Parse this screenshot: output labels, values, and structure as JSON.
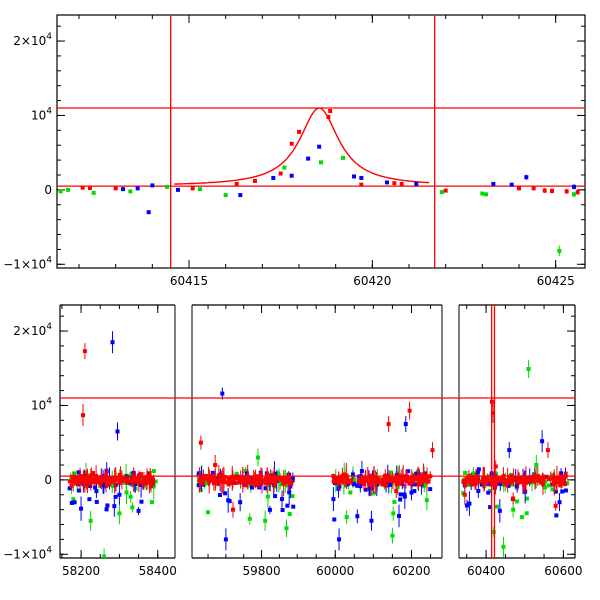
{
  "chart_data": [
    {
      "type": "scatter",
      "panel": "top",
      "xlim": [
        60411.4,
        60425.8
      ],
      "ylim": [
        -10500,
        23500
      ],
      "x_ticks": [
        60415,
        60420,
        60425
      ],
      "x_ticklabels": [
        "60415",
        "60420",
        "60425"
      ],
      "y_ticks": [
        -10000,
        0,
        10000,
        20000
      ],
      "y_ticklabels": [
        {
          "base": "−1×10",
          "exp": "4"
        },
        {
          "base": "0",
          "exp": ""
        },
        {
          "base": "10",
          "exp": "4"
        },
        {
          "base": "2×10",
          "exp": "4"
        }
      ],
      "hlines": [
        11000,
        500
      ],
      "vlines": [
        60414.5,
        60421.7
      ],
      "model_curve": {
        "baseline": 500,
        "peak": 11000,
        "x0": 60418.55,
        "width": 0.65
      },
      "series": [
        {
          "color": "#ff0000",
          "points": [
            [
              60412.1,
              300,
              250
            ],
            [
              60412.3,
              250,
              200
            ],
            [
              60413.0,
              200,
              200
            ],
            [
              60415.1,
              200,
              200
            ],
            [
              60416.3,
              800,
              250
            ],
            [
              60416.8,
              1200,
              250
            ],
            [
              60417.5,
              2200,
              250
            ],
            [
              60417.8,
              6200,
              300
            ],
            [
              60418.0,
              7800,
              300
            ],
            [
              60418.8,
              9800,
              300
            ],
            [
              60418.85,
              10600,
              300
            ],
            [
              60419.7,
              700,
              250
            ],
            [
              60420.6,
              900,
              250
            ],
            [
              60420.8,
              800,
              250
            ],
            [
              60422.0,
              -100,
              250
            ],
            [
              60424.0,
              200,
              300
            ],
            [
              60424.4,
              200,
              300
            ],
            [
              60424.7,
              -100,
              350
            ],
            [
              60424.9,
              -150,
              350
            ],
            [
              60425.3,
              -200,
              350
            ],
            [
              60425.6,
              -300,
              400
            ]
          ]
        },
        {
          "color": "#0000ff",
          "points": [
            [
              60413.2,
              100,
              200
            ],
            [
              60413.6,
              200,
              200
            ],
            [
              60413.9,
              -3000,
              250
            ],
            [
              60414.0,
              600,
              200
            ],
            [
              60414.7,
              0,
              200
            ],
            [
              60416.4,
              -700,
              250
            ],
            [
              60417.3,
              1600,
              250
            ],
            [
              60417.8,
              1900,
              250
            ],
            [
              60418.25,
              4200,
              300
            ],
            [
              60418.55,
              5800,
              300
            ],
            [
              60419.5,
              1800,
              250
            ],
            [
              60419.7,
              1600,
              250
            ],
            [
              60420.4,
              1000,
              250
            ],
            [
              60421.2,
              800,
              250
            ],
            [
              60423.3,
              800,
              300
            ],
            [
              60423.8,
              700,
              300
            ],
            [
              60424.2,
              1700,
              350
            ],
            [
              60425.5,
              400,
              350
            ]
          ]
        },
        {
          "color": "#00dd00",
          "points": [
            [
              60411.5,
              -200,
              250
            ],
            [
              60411.7,
              0,
              250
            ],
            [
              60412.4,
              -400,
              250
            ],
            [
              60413.4,
              -200,
              250
            ],
            [
              60414.4,
              400,
              250
            ],
            [
              60415.3,
              100,
              250
            ],
            [
              60416.0,
              -700,
              300
            ],
            [
              60417.6,
              3000,
              300
            ],
            [
              60418.6,
              3700,
              300
            ],
            [
              60419.2,
              4300,
              300
            ],
            [
              60421.9,
              -300,
              300
            ],
            [
              60423.0,
              -500,
              300
            ],
            [
              60423.1,
              -600,
              300
            ],
            [
              60425.1,
              -8200,
              700
            ],
            [
              60425.5,
              -600,
              350
            ]
          ]
        }
      ]
    },
    {
      "type": "scatter",
      "panel": "bottom",
      "ylim": [
        -10500,
        23500
      ],
      "x_segments": [
        {
          "xmin": 58145,
          "xmax": 58445,
          "ticks": [
            58200,
            58400
          ],
          "ticklabels": [
            "58200",
            "58400"
          ]
        },
        {
          "xmin": 59605,
          "xmax": 59905,
          "ticks": [
            59800
          ],
          "ticklabels": [
            "59800"
          ]
        },
        {
          "xmin": 59905,
          "xmax": 60280,
          "ticks": [
            60000,
            60200
          ],
          "ticklabels": [
            "60000",
            "60200"
          ]
        },
        {
          "xmin": 60330,
          "xmax": 60630,
          "ticks": [
            60400,
            60600
          ],
          "ticklabels": [
            "60400",
            "60600"
          ]
        }
      ],
      "y_ticks": [
        -10000,
        0,
        10000,
        20000
      ],
      "y_ticklabels": [
        {
          "base": "−1×10",
          "exp": "4"
        },
        {
          "base": "0",
          "exp": ""
        },
        {
          "base": "10",
          "exp": "4"
        },
        {
          "base": "2×10",
          "exp": "4"
        }
      ],
      "hlines": [
        11000,
        500
      ],
      "vlines": [
        60414.5,
        60421.7
      ],
      "dense_clusters": [
        {
          "segment": 0,
          "xmin": 58170,
          "xmax": 58395
        },
        {
          "segment": 1,
          "xmin": 59620,
          "xmax": 59890
        },
        {
          "segment": 2,
          "xmin": 59995,
          "xmax": 60250
        },
        {
          "segment": 3,
          "xmin": 60340,
          "xmax": 60610
        }
      ],
      "outliers": {
        "red": [
          [
            58210,
            17300
          ],
          [
            58205,
            8700
          ],
          [
            59630,
            5000
          ],
          [
            59670,
            2000
          ],
          [
            59720,
            -4000
          ],
          [
            60140,
            7500
          ],
          [
            60195,
            9300
          ],
          [
            60160,
            -1500
          ],
          [
            60255,
            4000
          ],
          [
            60415,
            10500
          ],
          [
            60418,
            9000
          ],
          [
            60425,
            1800
          ],
          [
            60470,
            -2500
          ],
          [
            60560,
            4000
          ],
          [
            60580,
            -3500
          ],
          [
            60345,
            -2000
          ]
        ],
        "blue": [
          [
            58282,
            18500
          ],
          [
            58295,
            6500
          ],
          [
            58300,
            -2000
          ],
          [
            58240,
            -1500
          ],
          [
            59690,
            11600
          ],
          [
            59700,
            -8000
          ],
          [
            59740,
            -3000
          ],
          [
            60010,
            -8000
          ],
          [
            60095,
            -5500
          ],
          [
            60185,
            7500
          ],
          [
            60460,
            4000
          ],
          [
            60545,
            5200
          ],
          [
            60590,
            -3000
          ],
          [
            60380,
            -1500
          ]
        ],
        "green": [
          [
            58225,
            -5500
          ],
          [
            58260,
            -10300
          ],
          [
            58300,
            -4500
          ],
          [
            59790,
            3000
          ],
          [
            59810,
            -5500
          ],
          [
            59870,
            -6500
          ],
          [
            60030,
            -5000
          ],
          [
            60150,
            -7500
          ],
          [
            60420,
            -7000
          ],
          [
            60445,
            -9000
          ],
          [
            60470,
            -4000
          ],
          [
            60510,
            14900
          ],
          [
            60530,
            2000
          ]
        ]
      }
    }
  ],
  "colors": {
    "red": "#ff0000",
    "blue": "#0000ff",
    "green": "#00dd00",
    "line": "#ff0000",
    "axis": "#000000"
  }
}
